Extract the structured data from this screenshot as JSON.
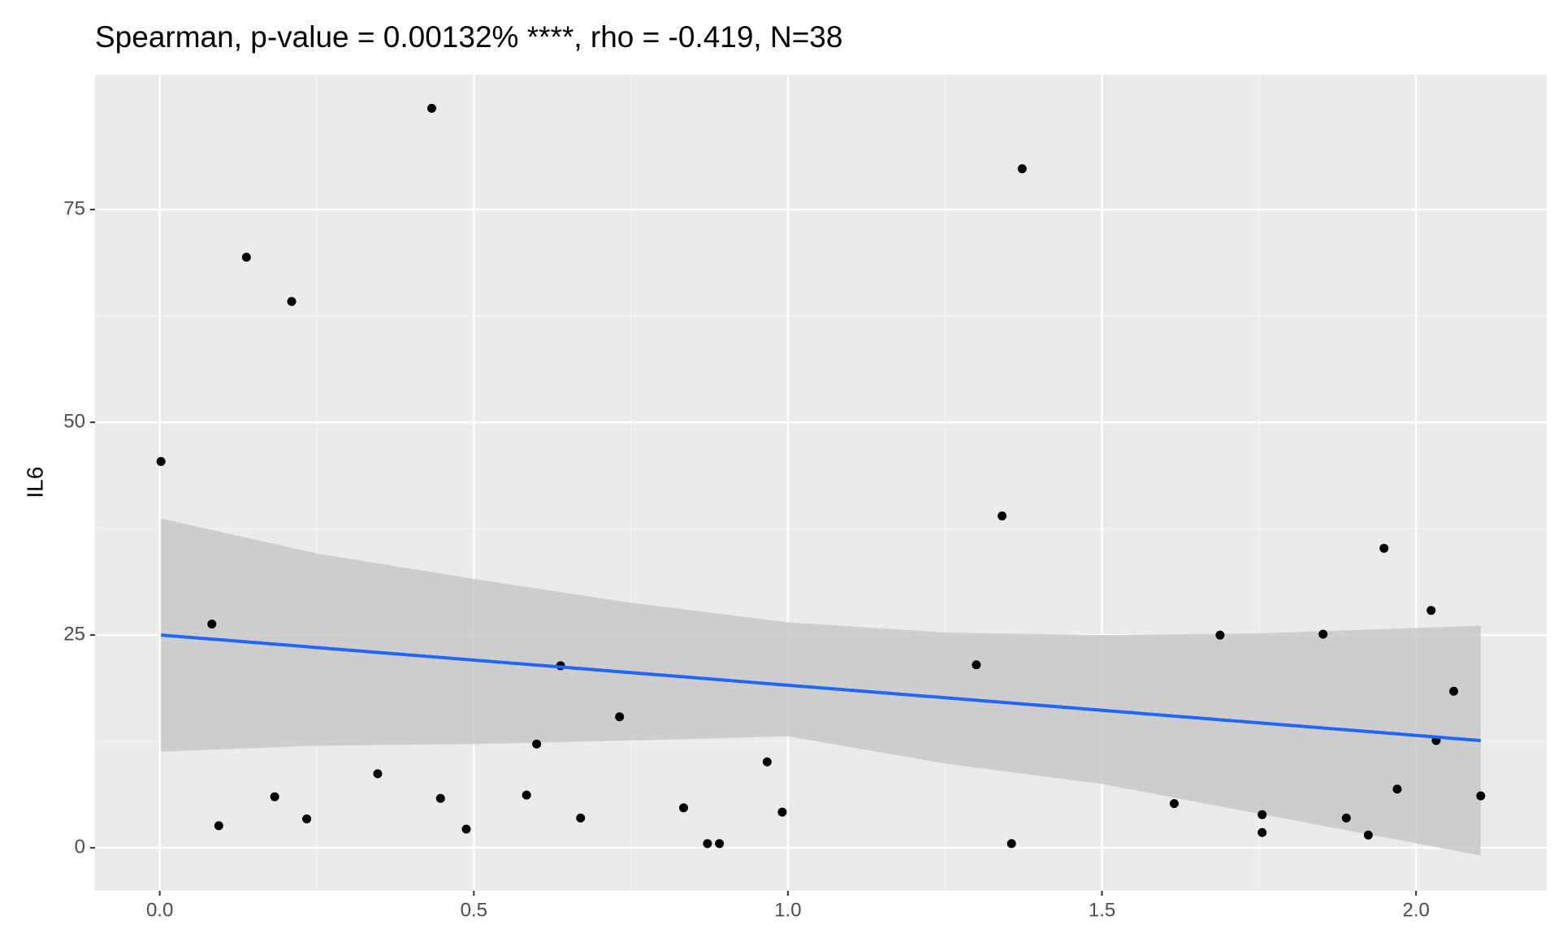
{
  "chart_data": {
    "type": "scatter",
    "title": "Spearman, p-value = 0.00132% ****, rho = -0.419, N=38",
    "y_label": "IL6",
    "x": [
      0.002,
      0.083,
      0.094,
      0.138,
      0.183,
      0.21,
      0.234,
      0.347,
      0.433,
      0.447,
      0.488,
      0.584,
      0.6,
      0.638,
      0.67,
      0.732,
      0.834,
      0.872,
      0.891,
      0.967,
      0.991,
      1.3,
      1.341,
      1.356,
      1.373,
      1.615,
      1.688,
      1.755,
      1.755,
      1.852,
      1.889,
      1.924,
      1.949,
      1.97,
      2.024,
      2.032,
      2.06,
      2.103
    ],
    "values": [
      45.4,
      26.3,
      2.6,
      69.4,
      6.0,
      64.2,
      3.4,
      8.7,
      86.9,
      5.8,
      2.2,
      6.2,
      12.2,
      21.4,
      3.5,
      15.4,
      4.7,
      0.5,
      0.5,
      10.1,
      4.2,
      21.5,
      39.0,
      0.5,
      79.8,
      5.2,
      25.0,
      3.9,
      1.8,
      25.1,
      3.5,
      1.5,
      35.2,
      6.9,
      27.9,
      12.6,
      18.4,
      6.1
    ],
    "color": "#000000",
    "fit": {
      "x": [
        0.002,
        2.103
      ],
      "values": [
        25.0,
        12.6
      ],
      "color": "#1f66ff"
    },
    "band": {
      "x": [
        0.002,
        0.25,
        0.5,
        0.75,
        1.0,
        1.25,
        1.5,
        1.75,
        2.103
      ],
      "lower": [
        11.3,
        12.0,
        12.2,
        12.6,
        13.1,
        9.9,
        7.5,
        4.0,
        -0.9
      ],
      "upper": [
        38.7,
        34.6,
        31.6,
        28.8,
        26.5,
        25.3,
        25.0,
        25.2,
        26.1
      ],
      "color": "#c8c8c8"
    },
    "xlim": [
      -0.103,
      2.208
    ],
    "ylim": [
      -5.05,
      90.85
    ],
    "xticks": [
      {
        "value": 0,
        "label": "0.0"
      },
      {
        "value": 0.5,
        "label": "0.5"
      },
      {
        "value": 1,
        "label": "1.0"
      },
      {
        "value": 1.5,
        "label": "1.5"
      },
      {
        "value": 2,
        "label": "2.0"
      }
    ],
    "yticks": [
      0,
      25,
      50,
      75
    ],
    "grid": true
  }
}
